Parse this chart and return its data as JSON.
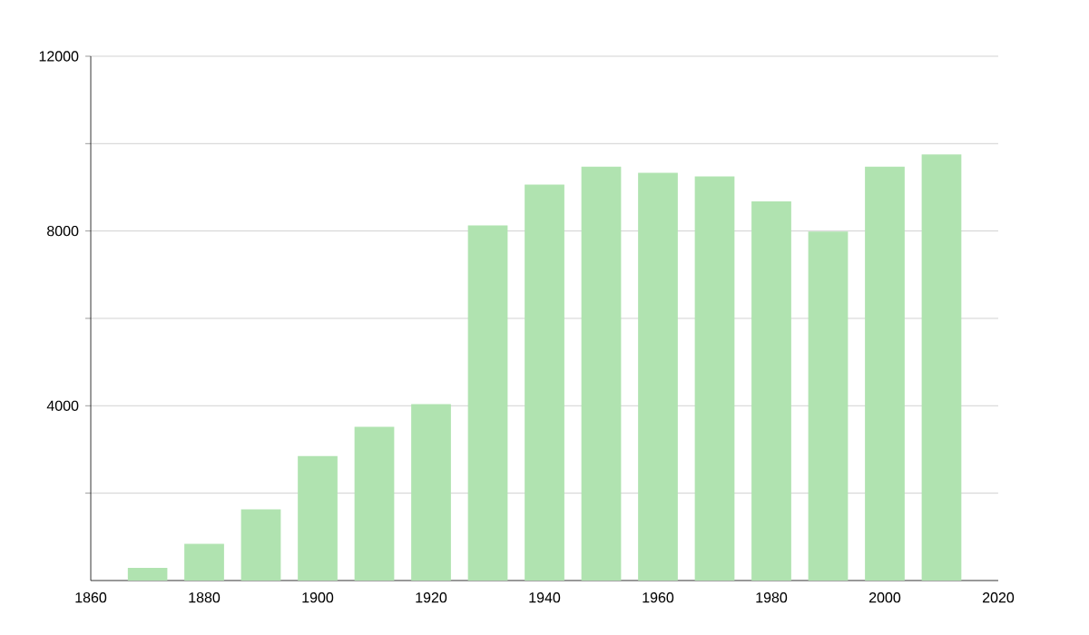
{
  "chart_data": {
    "type": "bar",
    "x": [
      1870,
      1880,
      1890,
      1900,
      1910,
      1920,
      1930,
      1940,
      1950,
      1960,
      1970,
      1980,
      1990,
      2000,
      2010
    ],
    "values": [
      290,
      840,
      1630,
      2850,
      3520,
      4040,
      8130,
      9060,
      9470,
      9330,
      9250,
      8680,
      7990,
      9470,
      9750
    ],
    "color": "#b0e3b0",
    "xlim": [
      1860,
      2020
    ],
    "xticks": [
      1860,
      1880,
      1900,
      1920,
      1940,
      1960,
      1980,
      2000,
      2020
    ],
    "ylim": [
      0,
      12000
    ],
    "yticks": [
      {
        "value": 2000,
        "label": null
      },
      4000,
      {
        "value": 6000,
        "label": null
      },
      8000,
      {
        "value": 10000,
        "label": null
      },
      12000
    ],
    "grid": "y"
  }
}
